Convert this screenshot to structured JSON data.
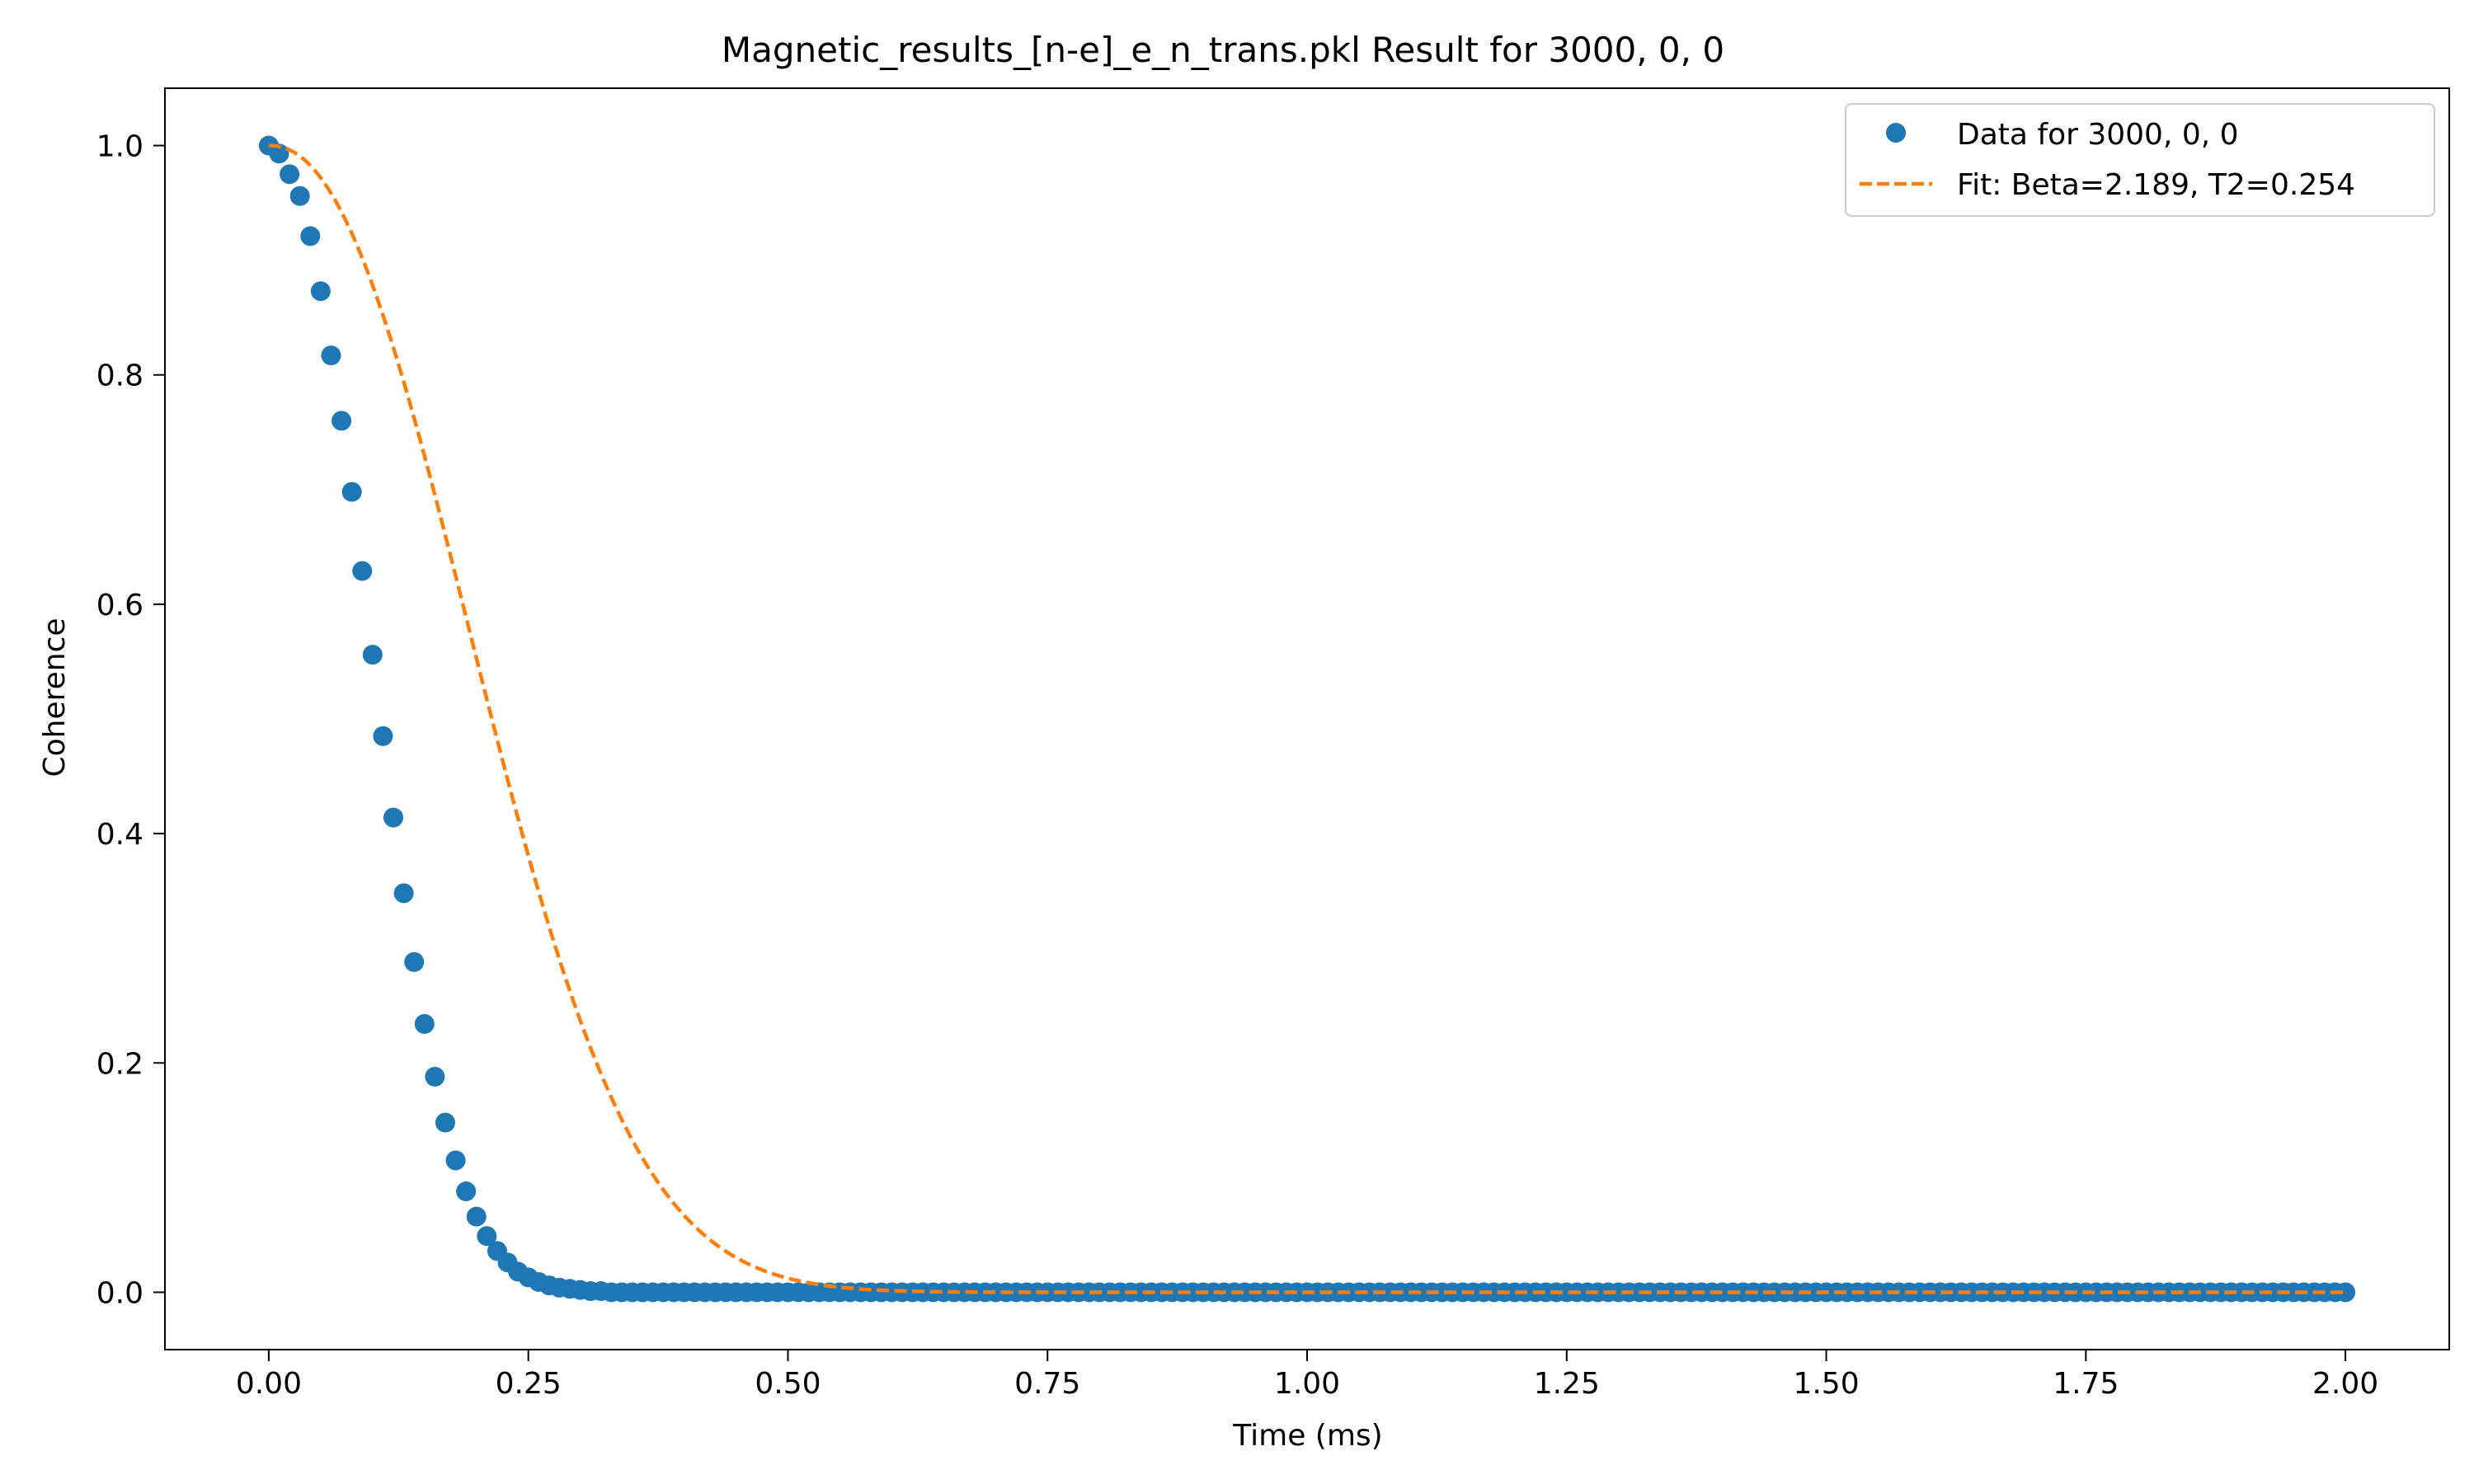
{
  "chart_data": {
    "type": "scatter",
    "title": "Magnetic_results_[n-e]_e_n_trans.pkl Result for 3000, 0, 0",
    "xlabel": "Time (ms)",
    "ylabel": "Coherence",
    "xlim": [
      -0.1,
      2.1
    ],
    "ylim": [
      -0.05,
      1.05
    ],
    "x_ticks": [
      0.0,
      0.25,
      0.5,
      0.75,
      1.0,
      1.25,
      1.5,
      1.75,
      2.0
    ],
    "x_tick_labels": [
      "0.00",
      "0.25",
      "0.50",
      "0.75",
      "1.00",
      "1.25",
      "1.50",
      "1.75",
      "2.00"
    ],
    "y_ticks": [
      0.0,
      0.2,
      0.4,
      0.6,
      0.8,
      1.0
    ],
    "y_tick_labels": [
      "0.0",
      "0.2",
      "0.4",
      "0.6",
      "0.8",
      "1.0"
    ],
    "grid": false,
    "legend_position": "top-right",
    "series": [
      {
        "name": "Data for 3000, 0, 0",
        "kind": "markers",
        "color": "#1f77b4",
        "x_start": 0.0,
        "x_end": 2.0,
        "x_step": 0.01,
        "y_early": [
          1.0,
          0.993,
          0.975,
          0.956,
          0.921,
          0.873,
          0.817,
          0.76,
          0.698,
          0.629,
          0.556,
          0.485,
          0.414,
          0.348,
          0.288,
          0.234,
          0.188,
          0.148,
          0.115,
          0.088,
          0.066,
          0.049,
          0.036,
          0.026,
          0.018,
          0.013,
          0.009,
          0.006,
          0.004,
          0.003,
          0.002,
          0.001,
          0.001,
          0.0,
          0.0
        ],
        "y_rest": 0.0
      },
      {
        "name": "Fit: Beta=2.189, T2=0.254",
        "kind": "dashed-line",
        "color": "#ff7f0e",
        "beta": 2.189,
        "t2": 0.254
      }
    ]
  }
}
